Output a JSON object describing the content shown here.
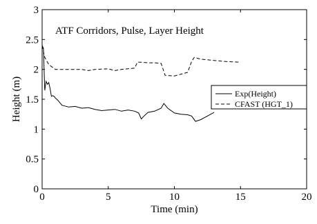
{
  "chart_data": {
    "type": "line",
    "annotation": "ATF Corridors, Pulse, Layer Height",
    "xlabel": "Time (min)",
    "ylabel": "Height (m)",
    "xlim": [
      0,
      20
    ],
    "ylim": [
      0,
      3
    ],
    "xticks": [
      0,
      5,
      10,
      15,
      20
    ],
    "yticks": [
      0,
      0.5,
      1,
      1.5,
      2,
      2.5,
      3
    ],
    "xtick_labels": [
      "0",
      "5",
      "10",
      "15",
      "20"
    ],
    "ytick_labels": [
      "0",
      "0.5",
      "1",
      "1.5",
      "2",
      "2.5",
      "3"
    ],
    "grid": false,
    "legend_position": "right",
    "series": [
      {
        "name": "Exp(Height)",
        "style": "solid",
        "color": "#000000",
        "x": [
          0,
          0.1,
          0.2,
          0.3,
          0.4,
          0.5,
          0.6,
          0.7,
          0.8,
          0.9,
          1.0,
          1.2,
          1.5,
          2.0,
          2.5,
          3.0,
          3.5,
          4.0,
          4.5,
          5.0,
          5.5,
          6.0,
          6.5,
          7.0,
          7.3,
          7.5,
          7.7,
          8.0,
          8.5,
          9.0,
          9.2,
          9.5,
          10.0,
          10.5,
          11.0,
          11.3,
          11.6,
          12.0,
          12.5,
          13.0
        ],
        "y": [
          2.4,
          2.35,
          1.65,
          1.8,
          1.75,
          1.78,
          1.68,
          1.55,
          1.56,
          1.55,
          1.52,
          1.48,
          1.4,
          1.37,
          1.38,
          1.35,
          1.36,
          1.33,
          1.31,
          1.32,
          1.33,
          1.3,
          1.32,
          1.3,
          1.27,
          1.17,
          1.22,
          1.28,
          1.3,
          1.35,
          1.43,
          1.35,
          1.27,
          1.25,
          1.24,
          1.22,
          1.13,
          1.16,
          1.22,
          1.28
        ]
      },
      {
        "name": "CFAST (HGT_1)",
        "style": "dashed",
        "color": "#000000",
        "x": [
          0,
          0.2,
          0.5,
          1.0,
          2.0,
          3.0,
          3.5,
          4.0,
          5.0,
          5.5,
          6.0,
          7.0,
          7.2,
          7.5,
          8.0,
          8.5,
          9.0,
          9.3,
          10.0,
          10.5,
          11.0,
          11.3,
          11.5,
          12.0,
          13.0,
          14.0,
          15.0
        ],
        "y": [
          2.4,
          2.2,
          2.08,
          2.0,
          2.0,
          2.0,
          1.98,
          2.0,
          2.01,
          1.98,
          2.0,
          2.02,
          2.12,
          2.12,
          2.11,
          2.11,
          2.1,
          1.9,
          1.89,
          1.92,
          1.95,
          2.13,
          2.2,
          2.17,
          2.15,
          2.13,
          2.12
        ]
      }
    ]
  }
}
